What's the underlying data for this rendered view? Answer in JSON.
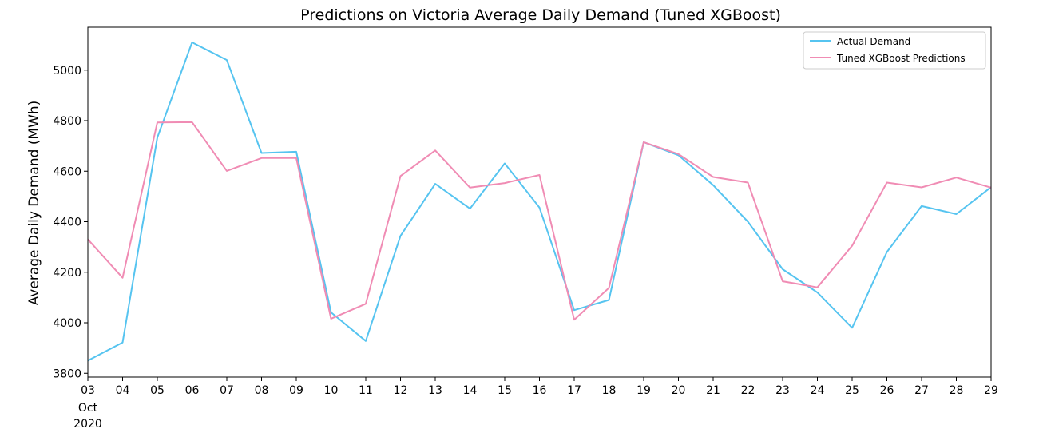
{
  "chart_data": {
    "type": "line",
    "title": "Predictions on Victoria Average Daily Demand (Tuned XGBoost)",
    "xlabel": "",
    "ylabel": "Average Daily Demand (MWh)",
    "categories": [
      "03",
      "04",
      "05",
      "06",
      "07",
      "08",
      "09",
      "10",
      "11",
      "12",
      "13",
      "14",
      "15",
      "16",
      "17",
      "18",
      "19",
      "20",
      "21",
      "22",
      "23",
      "24",
      "25",
      "26",
      "27",
      "28",
      "29"
    ],
    "x_sub_label_month": "Oct",
    "x_sub_label_year": "2020",
    "ylim": [
      3785,
      5170
    ],
    "yticks": [
      3800,
      4000,
      4200,
      4400,
      4600,
      4800,
      5000
    ],
    "grid": false,
    "legend_position": "top-right",
    "series": [
      {
        "name": "Actual Demand",
        "color": "#56c4f0",
        "values": [
          3850,
          3922,
          4733,
          5110,
          5040,
          4672,
          4677,
          4041,
          3928,
          4344,
          4550,
          4452,
          4631,
          4456,
          4050,
          4090,
          4715,
          4663,
          4545,
          4400,
          4212,
          4120,
          3980,
          4280,
          4462,
          4430,
          4537
        ]
      },
      {
        "name": "Tuned XGBoost Predictions",
        "color": "#f08cb4",
        "values": [
          4330,
          4178,
          4793,
          4794,
          4601,
          4652,
          4652,
          4016,
          4075,
          4581,
          4682,
          4535,
          4553,
          4585,
          4012,
          4138,
          4715,
          4668,
          4577,
          4555,
          4164,
          4140,
          4305,
          4555,
          4536,
          4575,
          4535
        ]
      }
    ]
  }
}
